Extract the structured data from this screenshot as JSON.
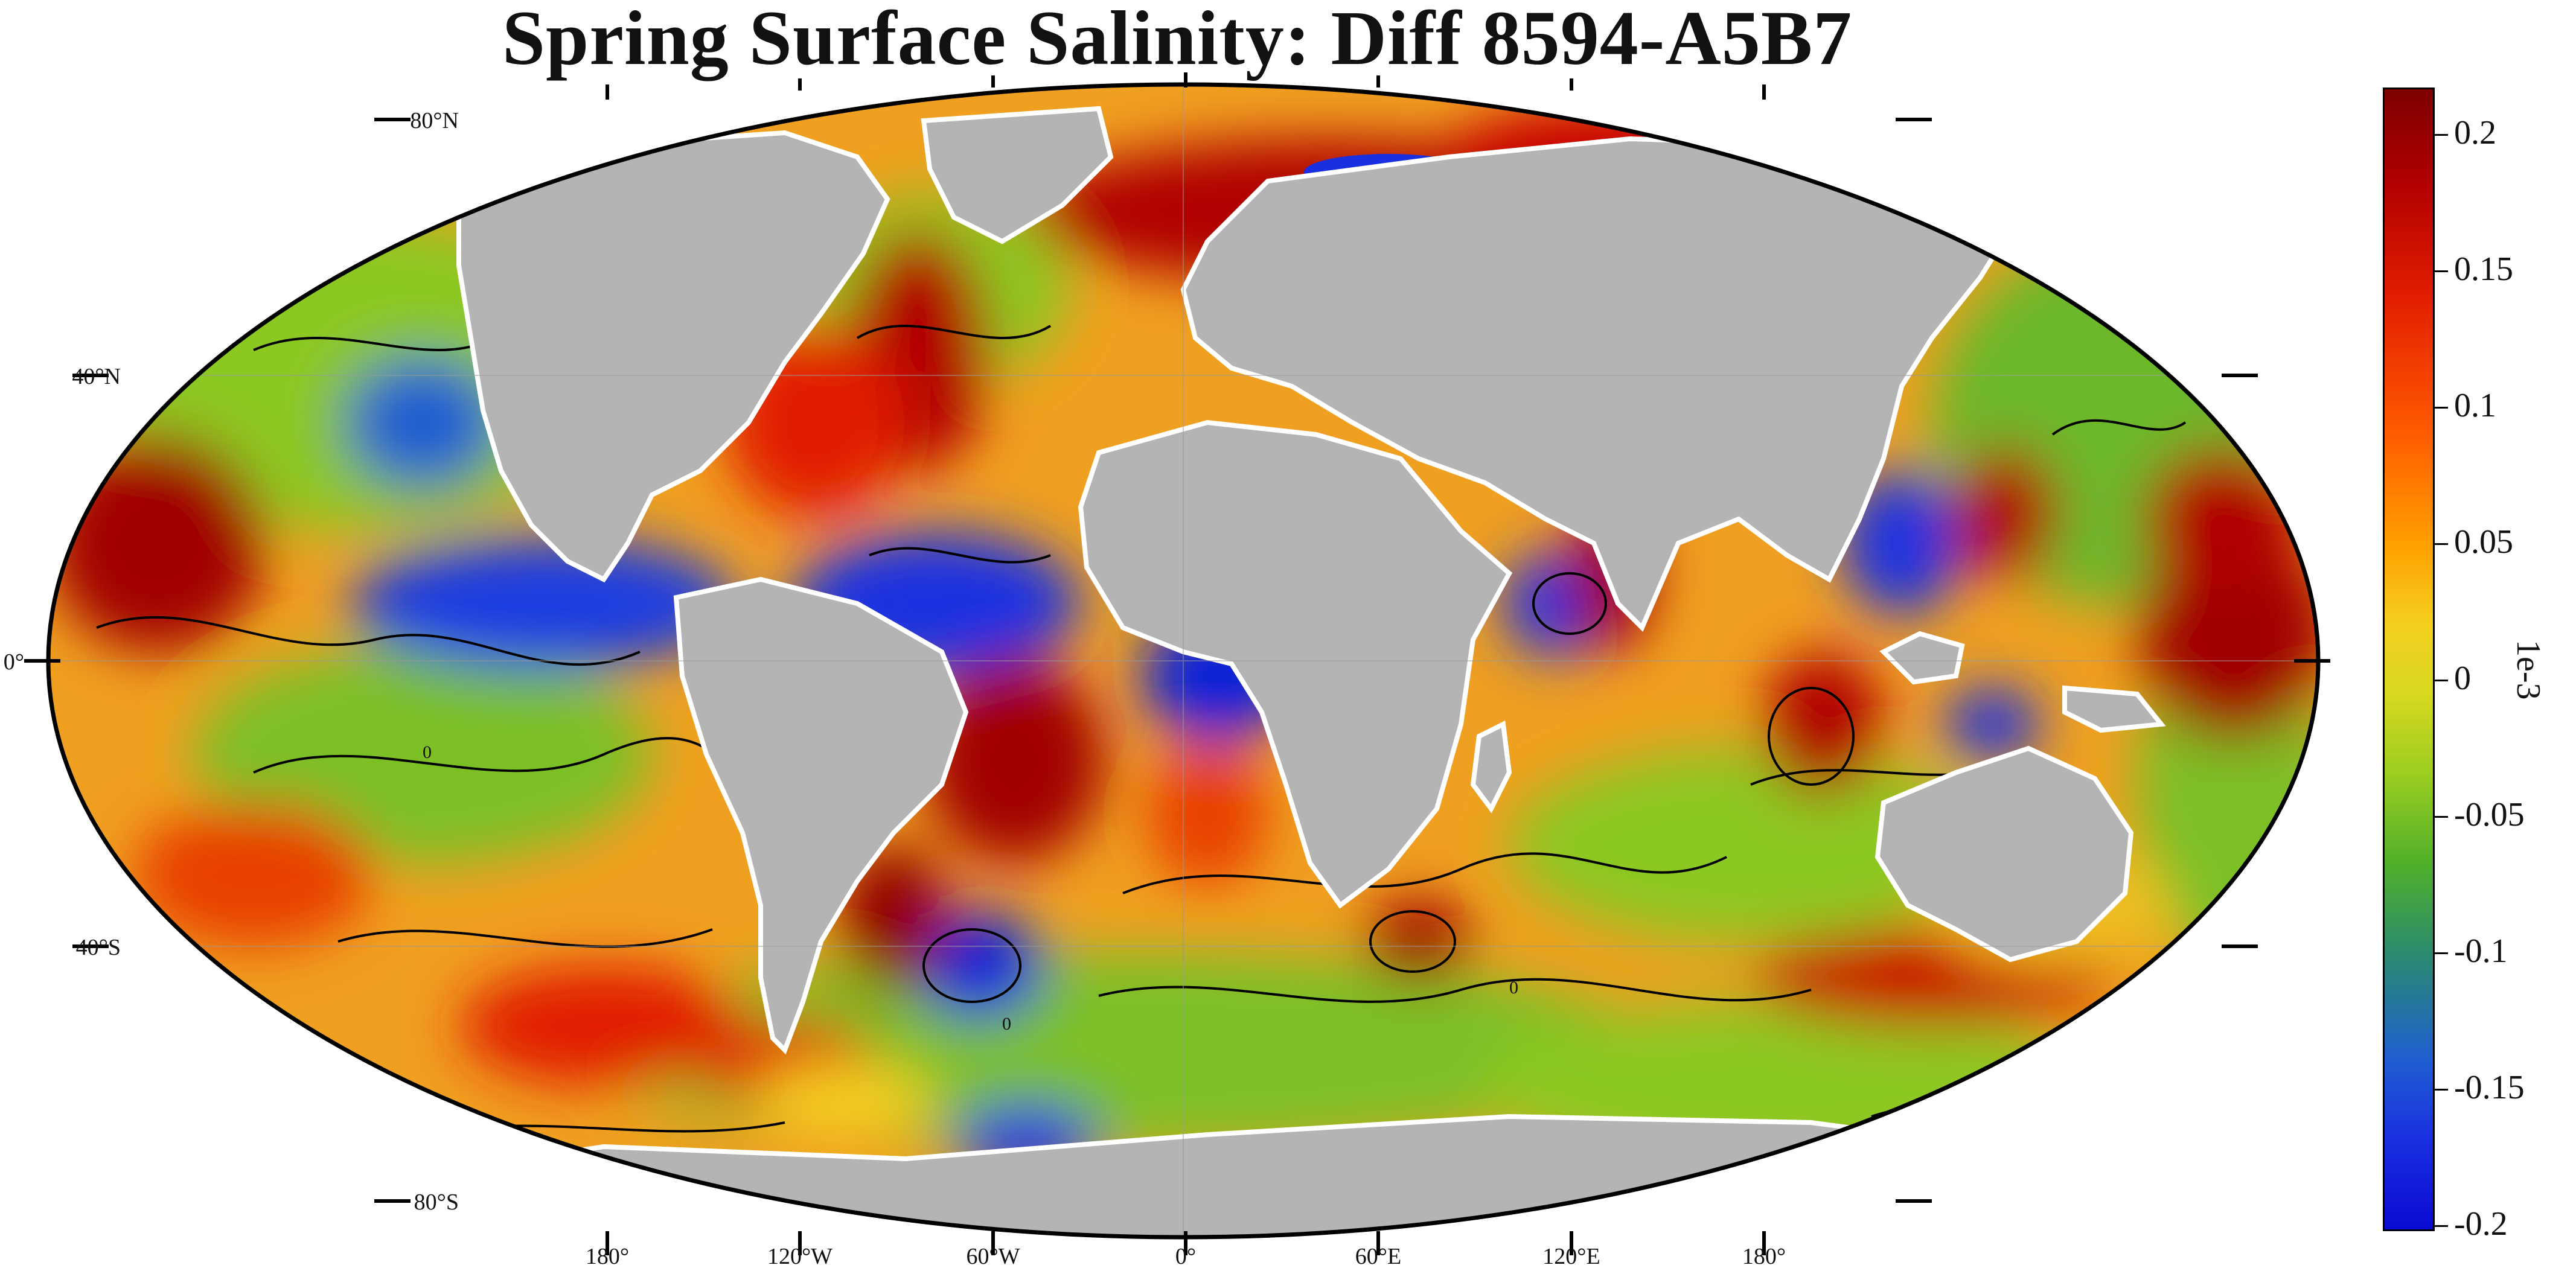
{
  "title": "Spring Surface Salinity: Diff 8594-A5B7",
  "map": {
    "projection": "robinson",
    "field": "surface salinity difference",
    "land_color": "#b4b4b4",
    "contour_label": "0",
    "lat_labels": [
      "80°N",
      "40°N",
      "0°",
      "40°S",
      "80°S"
    ],
    "lon_labels": [
      "180°",
      "120°W",
      "60°W",
      "0°",
      "60°E",
      "120°E",
      "180°"
    ]
  },
  "colorbar": {
    "ticks": [
      "0.2",
      "0.15",
      "0.1",
      "0.05",
      "0",
      "-0.05",
      "-0.1",
      "-0.15",
      "-0.2"
    ],
    "unit": "1e-3",
    "range": [
      -0.2,
      0.2
    ],
    "colors": {
      "max": "#7d0000",
      "mid": "#f4d020",
      "min": "#0a0ad2"
    }
  }
}
